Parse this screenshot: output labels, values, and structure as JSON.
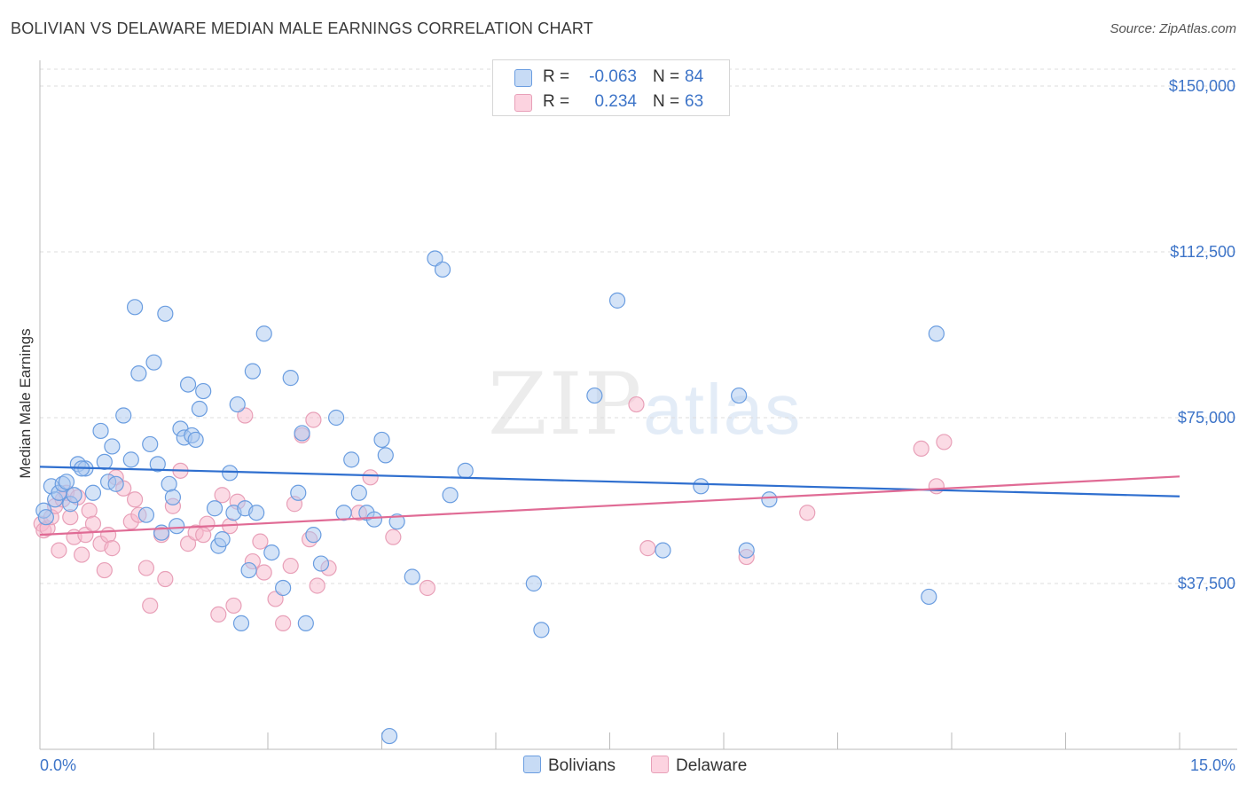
{
  "header": {
    "title": "BOLIVIAN VS DELAWARE MEDIAN MALE EARNINGS CORRELATION CHART",
    "source": "Source: ZipAtlas.com"
  },
  "watermark": {
    "zip": "ZIP",
    "atlas": "atlas"
  },
  "legend": {
    "rows": [
      {
        "r_label": "R =",
        "r_value": "-0.063",
        "n_label": "N =",
        "n_value": "84",
        "color": "#aac8f0"
      },
      {
        "r_label": "R =",
        "r_value": "0.234",
        "n_label": "N =",
        "n_value": "63",
        "color": "#f8b8cc"
      }
    ]
  },
  "bottom_legend": [
    {
      "label": "Bolivians",
      "color": "#aac8f0"
    },
    {
      "label": "Delaware",
      "color": "#f8b8cc"
    }
  ],
  "chart_data": {
    "type": "scatter",
    "title": "BOLIVIAN VS DELAWARE MEDIAN MALE EARNINGS CORRELATION CHART",
    "xlabel": "",
    "ylabel": "Median Male Earnings",
    "xlim": [
      0,
      15
    ],
    "ylim": [
      0,
      150000
    ],
    "x_tick_labels": [
      "0.0%",
      "15.0%"
    ],
    "y_ticks": [
      37500,
      75000,
      112500,
      150000
    ],
    "y_tick_labels": [
      "$37,500",
      "$75,000",
      "$112,500",
      "$150,000"
    ],
    "grid": "horizontal dashed",
    "legend_position": "top-center",
    "series": [
      {
        "name": "Bolivians",
        "color": "#6a9de0",
        "fill": "#aac8f0",
        "trend": {
          "x": [
            0,
            15
          ],
          "y": [
            63900,
            57200
          ]
        },
        "points": [
          [
            0.05,
            54000
          ],
          [
            0.08,
            52500
          ],
          [
            0.15,
            59500
          ],
          [
            0.2,
            56500
          ],
          [
            0.25,
            58000
          ],
          [
            0.3,
            60000
          ],
          [
            0.35,
            60500
          ],
          [
            0.4,
            55500
          ],
          [
            0.5,
            64500
          ],
          [
            0.6,
            63500
          ],
          [
            0.7,
            58000
          ],
          [
            0.8,
            72000
          ],
          [
            0.85,
            65000
          ],
          [
            0.9,
            60500
          ],
          [
            0.95,
            68500
          ],
          [
            1.0,
            60000
          ],
          [
            1.1,
            75500
          ],
          [
            1.2,
            65500
          ],
          [
            1.25,
            100000
          ],
          [
            1.3,
            85000
          ],
          [
            1.4,
            53000
          ],
          [
            1.45,
            69000
          ],
          [
            1.5,
            87500
          ],
          [
            1.55,
            64500
          ],
          [
            1.6,
            49000
          ],
          [
            1.65,
            98500
          ],
          [
            1.7,
            60000
          ],
          [
            1.8,
            50500
          ],
          [
            1.85,
            72500
          ],
          [
            1.9,
            70500
          ],
          [
            1.95,
            82500
          ],
          [
            2.0,
            71000
          ],
          [
            2.05,
            70000
          ],
          [
            2.1,
            77000
          ],
          [
            2.15,
            81000
          ],
          [
            2.3,
            54500
          ],
          [
            2.35,
            46000
          ],
          [
            2.4,
            47500
          ],
          [
            2.5,
            62500
          ],
          [
            2.55,
            53500
          ],
          [
            2.6,
            78000
          ],
          [
            2.65,
            28500
          ],
          [
            2.7,
            54500
          ],
          [
            2.75,
            40500
          ],
          [
            2.8,
            85500
          ],
          [
            2.85,
            53500
          ],
          [
            2.95,
            94000
          ],
          [
            3.05,
            44500
          ],
          [
            3.2,
            36500
          ],
          [
            3.3,
            84000
          ],
          [
            3.4,
            58000
          ],
          [
            3.45,
            71500
          ],
          [
            3.5,
            28500
          ],
          [
            3.6,
            48500
          ],
          [
            3.7,
            42000
          ],
          [
            3.9,
            75000
          ],
          [
            4.0,
            53500
          ],
          [
            4.1,
            65500
          ],
          [
            4.2,
            58000
          ],
          [
            4.3,
            53500
          ],
          [
            4.4,
            52000
          ],
          [
            4.5,
            70000
          ],
          [
            4.55,
            66500
          ],
          [
            4.7,
            51500
          ],
          [
            4.9,
            39000
          ],
          [
            5.2,
            111000
          ],
          [
            5.3,
            108500
          ],
          [
            5.4,
            57500
          ],
          [
            5.6,
            63000
          ],
          [
            6.5,
            37500
          ],
          [
            6.6,
            27000
          ],
          [
            7.3,
            80000
          ],
          [
            7.6,
            101500
          ],
          [
            8.2,
            45000
          ],
          [
            8.7,
            59500
          ],
          [
            9.2,
            80000
          ],
          [
            9.3,
            45000
          ],
          [
            9.6,
            56500
          ],
          [
            11.8,
            94000
          ],
          [
            11.7,
            34500
          ],
          [
            4.6,
            3000
          ],
          [
            1.75,
            57000
          ],
          [
            0.45,
            57500
          ],
          [
            0.55,
            63500
          ]
        ]
      },
      {
        "name": "Delaware",
        "color": "#e8a0b8",
        "fill": "#f8b8cc",
        "trend": {
          "x": [
            0,
            15
          ],
          "y": [
            48500,
            61700
          ]
        },
        "points": [
          [
            0.02,
            51000
          ],
          [
            0.05,
            49500
          ],
          [
            0.1,
            50000
          ],
          [
            0.15,
            52500
          ],
          [
            0.2,
            55000
          ],
          [
            0.25,
            45000
          ],
          [
            0.3,
            56500
          ],
          [
            0.35,
            58000
          ],
          [
            0.4,
            52500
          ],
          [
            0.45,
            48000
          ],
          [
            0.55,
            44000
          ],
          [
            0.6,
            48500
          ],
          [
            0.65,
            54000
          ],
          [
            0.7,
            51000
          ],
          [
            0.8,
            46500
          ],
          [
            0.85,
            40500
          ],
          [
            0.9,
            48500
          ],
          [
            0.95,
            45500
          ],
          [
            1.0,
            61500
          ],
          [
            1.1,
            59000
          ],
          [
            1.2,
            51500
          ],
          [
            1.25,
            56500
          ],
          [
            1.4,
            41000
          ],
          [
            1.45,
            32500
          ],
          [
            1.6,
            48500
          ],
          [
            1.65,
            38500
          ],
          [
            1.75,
            55000
          ],
          [
            1.85,
            63000
          ],
          [
            1.95,
            46500
          ],
          [
            2.05,
            49000
          ],
          [
            2.2,
            51000
          ],
          [
            2.35,
            30500
          ],
          [
            2.4,
            57500
          ],
          [
            2.5,
            50500
          ],
          [
            2.55,
            32500
          ],
          [
            2.6,
            56000
          ],
          [
            2.7,
            75500
          ],
          [
            2.8,
            42500
          ],
          [
            2.9,
            47000
          ],
          [
            2.95,
            40000
          ],
          [
            3.1,
            34000
          ],
          [
            3.2,
            28500
          ],
          [
            3.3,
            41500
          ],
          [
            3.35,
            55500
          ],
          [
            3.45,
            71000
          ],
          [
            3.55,
            47500
          ],
          [
            3.6,
            74500
          ],
          [
            3.65,
            37000
          ],
          [
            3.8,
            41000
          ],
          [
            4.2,
            53500
          ],
          [
            4.35,
            61500
          ],
          [
            4.65,
            48000
          ],
          [
            5.1,
            36500
          ],
          [
            7.85,
            78000
          ],
          [
            8.0,
            45500
          ],
          [
            9.3,
            43500
          ],
          [
            10.1,
            53500
          ],
          [
            11.6,
            68000
          ],
          [
            11.8,
            59500
          ],
          [
            11.9,
            69500
          ],
          [
            0.5,
            57000
          ],
          [
            1.3,
            53000
          ],
          [
            2.15,
            48500
          ]
        ]
      }
    ]
  }
}
